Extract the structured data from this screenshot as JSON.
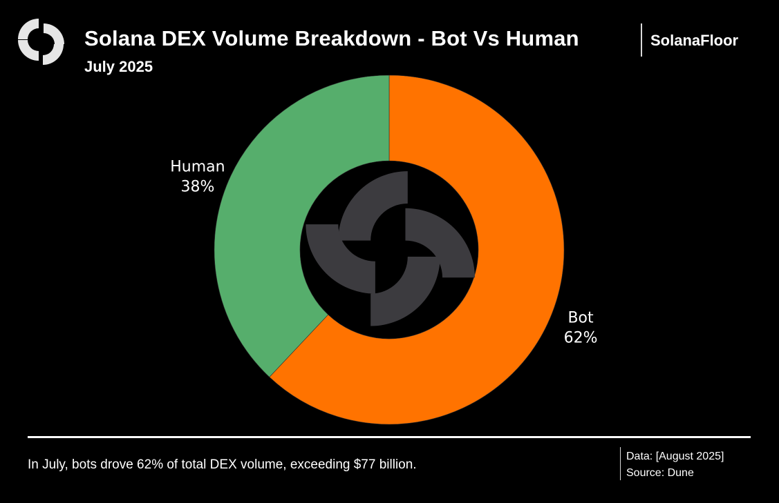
{
  "header": {
    "title": "Solana DEX Volume Breakdown - Bot Vs Human",
    "subtitle": "July 2025",
    "brand": "SolanaFloor"
  },
  "footer": {
    "caption": "In July, bots drove 62% of total DEX volume, exceeding $77 billion.",
    "data_line": "Data: [August 2025]",
    "source_line": "Source: Dune"
  },
  "icons": {
    "logo": "solanafloor-logo-icon",
    "center": "solanafloor-logo-icon"
  },
  "colors": {
    "background": "#000000",
    "bot": "#ff7300",
    "human": "#56ae6c",
    "center_logo": "#3c3b3f",
    "logo": "#e6e6e6"
  },
  "chart_data": {
    "type": "pie",
    "variant": "donut",
    "title": "Solana DEX Volume Breakdown - Bot Vs Human",
    "subtitle": "July 2025",
    "start": "12 o'clock, clockwise",
    "slices": [
      {
        "name": "Bot",
        "value": 62,
        "label": "62%",
        "color": "#ff7300"
      },
      {
        "name": "Human",
        "value": 38,
        "label": "38%",
        "color": "#56ae6c"
      }
    ],
    "legend": "none"
  }
}
